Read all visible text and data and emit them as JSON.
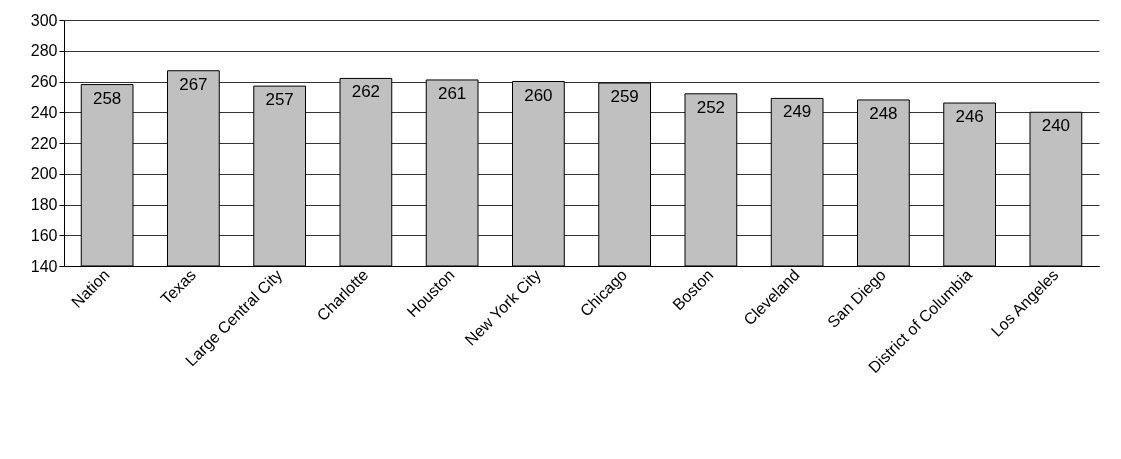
{
  "chart_data": {
    "type": "bar",
    "categories": [
      "Nation",
      "Texas",
      "Large Central City",
      "Charlotte",
      "Houston",
      "New York City",
      "Chicago",
      "Boston",
      "Cleveland",
      "San Diego",
      "District of Columbia",
      "Los Angeles"
    ],
    "values": [
      258,
      267,
      257,
      262,
      261,
      260,
      259,
      252,
      249,
      248,
      246,
      240
    ],
    "color": "#c0c0c0",
    "ylim": [
      140,
      300
    ],
    "yticks": [
      140,
      160,
      180,
      200,
      220,
      240,
      260,
      280,
      300
    ],
    "grid": "y",
    "data_labels": true
  }
}
